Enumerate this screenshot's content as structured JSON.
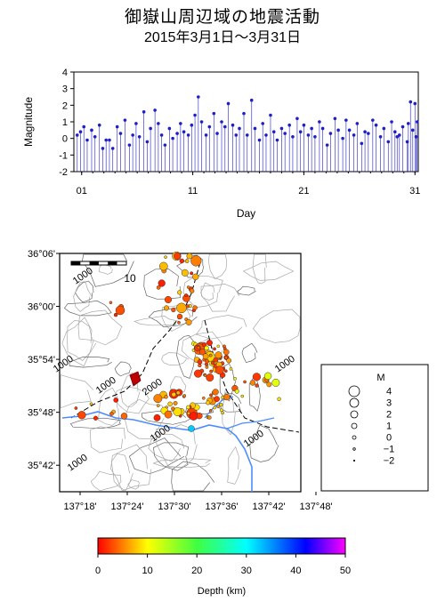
{
  "page": {
    "title": "御嶽山周辺域の地震活動",
    "subtitle": "2015年3月1日〜3月31日"
  },
  "chart_data": [
    {
      "type": "stem",
      "xlabel": "Day",
      "ylabel": "Magnitude",
      "xlim": [
        0.3,
        31.3
      ],
      "ylim": [
        -2,
        4
      ],
      "xticks": [
        "01",
        "11",
        "21",
        "31"
      ],
      "xtick_values": [
        1,
        11,
        21,
        31
      ],
      "yticks": [
        -2,
        -1,
        0,
        1,
        2,
        3,
        4
      ],
      "color": "#1f1fc8",
      "points": [
        [
          0.6,
          0.2
        ],
        [
          0.9,
          0.4
        ],
        [
          1.2,
          0.7
        ],
        [
          1.5,
          -0.1
        ],
        [
          1.9,
          0.5
        ],
        [
          2.2,
          0.1
        ],
        [
          2.6,
          0.8
        ],
        [
          2.9,
          -0.6
        ],
        [
          3.2,
          -0.1
        ],
        [
          3.5,
          -0.1
        ],
        [
          3.8,
          -0.6
        ],
        [
          4.2,
          0.7
        ],
        [
          4.5,
          0.3
        ],
        [
          4.9,
          1.1
        ],
        [
          5.3,
          -0.4
        ],
        [
          5.6,
          0.2
        ],
        [
          5.9,
          0.9
        ],
        [
          6.2,
          0.1
        ],
        [
          6.6,
          1.6
        ],
        [
          6.9,
          -0.2
        ],
        [
          7.2,
          0.6
        ],
        [
          7.6,
          1.7
        ],
        [
          7.9,
          0.9
        ],
        [
          8.2,
          0.2
        ],
        [
          8.5,
          -0.4
        ],
        [
          8.9,
          0.6
        ],
        [
          9.2,
          0.0
        ],
        [
          9.6,
          0.3
        ],
        [
          9.9,
          0.9
        ],
        [
          10.2,
          0.4
        ],
        [
          10.6,
          0.2
        ],
        [
          10.9,
          0.8
        ],
        [
          11.2,
          1.4
        ],
        [
          11.5,
          2.5
        ],
        [
          11.8,
          1.0
        ],
        [
          12.2,
          0.2
        ],
        [
          12.5,
          0.7
        ],
        [
          12.9,
          1.5
        ],
        [
          13.2,
          0.3
        ],
        [
          13.6,
          1.0
        ],
        [
          13.9,
          0.7
        ],
        [
          14.2,
          2.1
        ],
        [
          14.6,
          0.8
        ],
        [
          14.9,
          0.2
        ],
        [
          15.2,
          0.6
        ],
        [
          15.6,
          1.5
        ],
        [
          15.9,
          0.2
        ],
        [
          16.3,
          2.3
        ],
        [
          16.6,
          0.6
        ],
        [
          17.0,
          -0.1
        ],
        [
          17.3,
          0.9
        ],
        [
          17.6,
          0.2
        ],
        [
          18.0,
          1.4
        ],
        [
          18.3,
          0.4
        ],
        [
          18.6,
          -0.1
        ],
        [
          19.0,
          0.6
        ],
        [
          19.3,
          0.3
        ],
        [
          19.7,
          0.8
        ],
        [
          20.0,
          0.1
        ],
        [
          20.4,
          1.2
        ],
        [
          20.7,
          0.4
        ],
        [
          21.0,
          0.8
        ],
        [
          21.4,
          0.2
        ],
        [
          21.7,
          0.6
        ],
        [
          22.0,
          0.1
        ],
        [
          22.4,
          1.0
        ],
        [
          22.7,
          0.6
        ],
        [
          23.1,
          -0.4
        ],
        [
          23.4,
          0.3
        ],
        [
          23.8,
          1.2
        ],
        [
          24.1,
          0.5
        ],
        [
          24.5,
          0.0
        ],
        [
          24.8,
          1.1
        ],
        [
          25.1,
          0.5
        ],
        [
          25.5,
          0.2
        ],
        [
          25.8,
          0.9
        ],
        [
          26.2,
          -0.3
        ],
        [
          26.5,
          0.4
        ],
        [
          26.8,
          0.3
        ],
        [
          27.2,
          1.1
        ],
        [
          27.5,
          0.8
        ],
        [
          27.9,
          0.1
        ],
        [
          28.2,
          0.6
        ],
        [
          28.6,
          -0.2
        ],
        [
          28.9,
          1.0
        ],
        [
          29.2,
          0.4
        ],
        [
          29.6,
          0.2
        ],
        [
          29.9,
          0.7
        ],
        [
          30.3,
          -0.2
        ],
        [
          30.6,
          2.2
        ],
        [
          30.8,
          0.5
        ],
        [
          31.0,
          2.1
        ],
        [
          31.1,
          0.1
        ],
        [
          31.2,
          1.0
        ],
        [
          30.4,
          0.9
        ],
        [
          29.4,
          0.1
        ]
      ]
    },
    {
      "type": "map",
      "lat_ticks": [
        "36°06'",
        "36°00'",
        "35°54'",
        "35°48'",
        "35°42'"
      ],
      "lon_ticks": [
        "137°18'",
        "137°24'",
        "137°30'",
        "137°36'",
        "137°42'",
        "137°48'"
      ],
      "scale_label": "10",
      "contour_labels": [
        "1000",
        "1000",
        "1000",
        "1000",
        "1000",
        "2000",
        "1000",
        "1000"
      ],
      "colorbar": {
        "label": "Depth (km)",
        "ticks": [
          0,
          10,
          20,
          30,
          40,
          50
        ],
        "colors": [
          "#ff0000",
          "#ff8000",
          "#ffff00",
          "#40ff40",
          "#00ffff",
          "#0080ff",
          "#0000ff",
          "#ff00ff"
        ]
      },
      "legend": {
        "title": "M",
        "entries": [
          "4",
          "3",
          "2",
          "1",
          "0",
          "−1",
          "−2"
        ]
      }
    }
  ]
}
